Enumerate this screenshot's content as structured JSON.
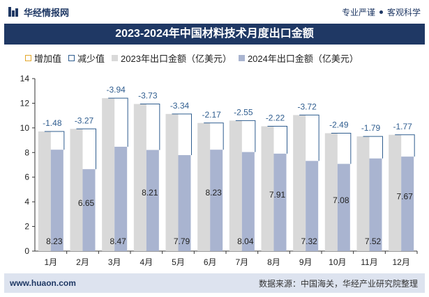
{
  "header": {
    "brand": "华经情报网",
    "slogan_left": "专业严谨",
    "slogan_right": "客观科学"
  },
  "chart_title": "2023-2024年中国材料技术月度出口金额",
  "legend": {
    "increase": "增加值",
    "decrease": "减少值",
    "s2023": "2023年出口金额（亿美元）",
    "s2024": "2024年出口金额（亿美元）"
  },
  "footer": {
    "url": "www.huaon.com",
    "source": "数据来源：中国海关，华经产业研究院整理"
  },
  "colors": {
    "bar2023": "#d9d9d9",
    "bar2024": "#a9b4d0",
    "decrease_line": "#2f5d8f",
    "diff_label": "#2f5d8f",
    "title_bg": "#1f3864"
  },
  "chart_data": {
    "type": "bar",
    "title": "2023-2024年中国材料技术月度出口金额",
    "categories": [
      "1月",
      "2月",
      "3月",
      "4月",
      "5月",
      "6月",
      "7月",
      "8月",
      "9月",
      "10月",
      "11月",
      "12月"
    ],
    "series": [
      {
        "name": "2023年出口金额（亿美元）",
        "values": [
          9.71,
          9.92,
          12.41,
          11.94,
          11.13,
          10.4,
          10.59,
          10.13,
          11.04,
          9.57,
          9.31,
          9.44
        ]
      },
      {
        "name": "2024年出口金额（亿美元）",
        "values": [
          8.23,
          6.65,
          8.47,
          8.21,
          7.79,
          8.23,
          8.04,
          7.91,
          7.32,
          7.08,
          7.52,
          7.67
        ]
      }
    ],
    "differences": [
      -1.48,
      -3.27,
      -3.94,
      -3.73,
      -3.34,
      -2.17,
      -2.55,
      -2.22,
      -3.72,
      -2.49,
      -1.79,
      -1.77
    ],
    "difference_labels": [
      "-1.48",
      "-3.27",
      "-3.94",
      "-3.73",
      "-3.34",
      "-2.17",
      "-2.55",
      "-2.22",
      "-3.72",
      "-2.49",
      "-1.79",
      "-1.77"
    ],
    "value_labels_2024": [
      "8.23",
      "6.65",
      "8.47",
      "8.21",
      "7.79",
      "8.23",
      "8.04",
      "7.91",
      "7.32",
      "7.08",
      "7.52",
      "7.67"
    ],
    "y_ticks": [
      "0",
      "2",
      "4",
      "6",
      "8",
      "10",
      "12",
      "14"
    ],
    "ylim": [
      0,
      14
    ],
    "grid": false
  }
}
